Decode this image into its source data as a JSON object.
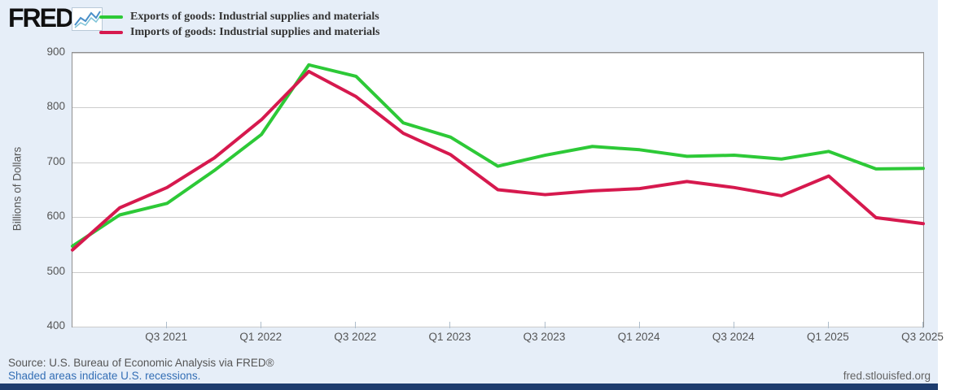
{
  "header": {
    "logo_text": "FRED",
    "logo_registered": "®"
  },
  "chart_data": {
    "type": "line",
    "title": "",
    "xlabel": "",
    "ylabel": "Billions of Dollars",
    "ylim": [
      400,
      900
    ],
    "y_ticks": [
      900,
      800,
      700,
      600,
      500,
      400
    ],
    "grid": true,
    "legend_position": "top-left",
    "x": [
      "Q1 2021",
      "Q2 2021",
      "Q3 2021",
      "Q4 2021",
      "Q1 2022",
      "Q2 2022",
      "Q3 2022",
      "Q4 2022",
      "Q1 2023",
      "Q2 2023",
      "Q3 2023",
      "Q4 2023",
      "Q1 2024",
      "Q2 2024",
      "Q3 2024",
      "Q4 2024",
      "Q1 2025",
      "Q2 2025",
      "Q3 2025"
    ],
    "x_ticks": [
      {
        "label": "Q3 2021",
        "index": 2
      },
      {
        "label": "Q1 2022",
        "index": 4
      },
      {
        "label": "Q3 2022",
        "index": 6
      },
      {
        "label": "Q1 2023",
        "index": 8
      },
      {
        "label": "Q3 2023",
        "index": 10
      },
      {
        "label": "Q1 2024",
        "index": 12
      },
      {
        "label": "Q3 2024",
        "index": 14
      },
      {
        "label": "Q1 2025",
        "index": 16
      },
      {
        "label": "Q3 2025",
        "index": 18
      }
    ],
    "series": [
      {
        "name": "Exports of goods: Industrial supplies and materials",
        "color": "#2dc937",
        "values": [
          547,
          604,
          625,
          685,
          751,
          878,
          857,
          772,
          746,
          693,
          713,
          729,
          723,
          711,
          713,
          706,
          720,
          688,
          689
        ]
      },
      {
        "name": "Imports of goods: Industrial supplies and materials",
        "color": "#d6194e",
        "values": [
          540,
          617,
          654,
          708,
          778,
          866,
          820,
          753,
          714,
          650,
          641,
          648,
          652,
          665,
          654,
          639,
          675,
          599,
          588
        ]
      }
    ]
  },
  "footer": {
    "source_line": "Source: U.S. Bureau of Economic Analysis via FRED®",
    "recession_note": "Shaded areas indicate U.S. recessions.",
    "site_link": "fred.stlouisfed.org"
  },
  "colors": {
    "page_background": "#e6eef8",
    "plot_background": "#ffffff",
    "gridline": "#cccccc",
    "axis_text": "#555555",
    "link_blue": "#336eb5",
    "footer_bar": "#1d3c6e",
    "exports_green": "#2dc937",
    "imports_red": "#d6194e"
  }
}
